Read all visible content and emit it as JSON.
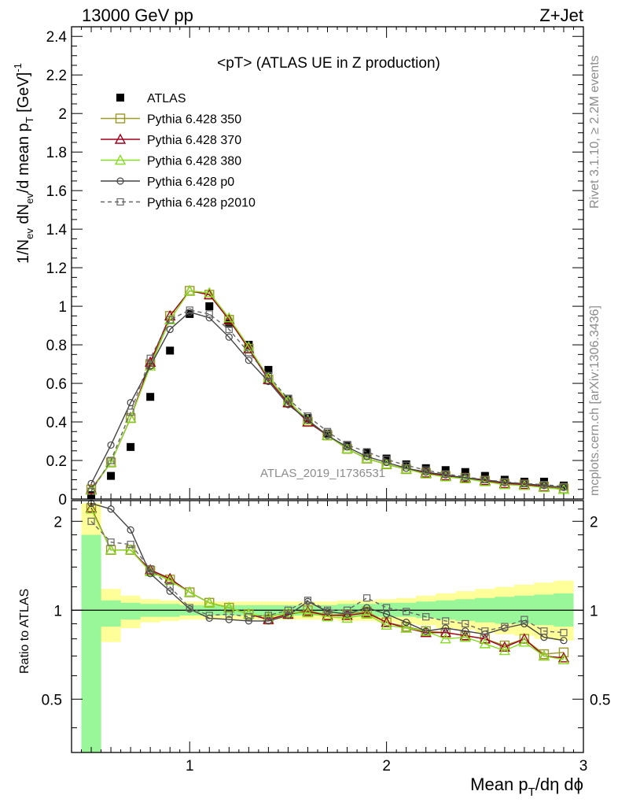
{
  "header": {
    "left": "13000 GeV pp",
    "right": "Z+Jet",
    "plot_title": "<pT> (ATLAS UE in Z production)",
    "side_rivet": "Rivet 3.1.10, ≥ 2.2M events",
    "side_mcplots": "mcplots.cern.ch [arXiv:1306.3436]",
    "analysis_id": "ATLAS_2019_I1736531"
  },
  "colors": {
    "atlas": "#000000",
    "p350": "#9a9a24",
    "p370": "#a0001c",
    "p380": "#88dd22",
    "p0": "#444444",
    "p2010": "#666666",
    "band_inner": "#99f799",
    "band_outer": "#ffff99"
  },
  "chart_data": [
    {
      "type": "line",
      "panel": "main",
      "ylabel": "1/N_ev dN_ev/d mean p_T [GeV]^-1",
      "ylim": [
        0,
        2.45
      ],
      "xlim": [
        0.4,
        3.0
      ],
      "yticks": [
        "0",
        "0.2",
        "0.4",
        "0.6",
        "0.8",
        "1",
        "1.2",
        "1.4",
        "1.6",
        "1.8",
        "2",
        "2.2",
        "2.4"
      ],
      "legend_position": "top-left",
      "x": [
        0.5,
        0.6,
        0.7,
        0.8,
        0.9,
        1.0,
        1.1,
        1.2,
        1.3,
        1.4,
        1.5,
        1.6,
        1.7,
        1.8,
        1.9,
        2.0,
        2.1,
        2.2,
        2.3,
        2.4,
        2.5,
        2.6,
        2.7,
        2.8,
        2.9
      ],
      "series": [
        {
          "name": "ATLAS",
          "key": "atlas",
          "marker": "square-filled",
          "values": [
            0.02,
            0.12,
            0.27,
            0.53,
            0.77,
            0.96,
            1.0,
            0.91,
            0.8,
            0.67,
            0.52,
            0.42,
            0.34,
            0.28,
            0.24,
            0.21,
            0.18,
            0.16,
            0.15,
            0.14,
            0.12,
            0.1,
            0.09,
            0.09,
            0.07
          ]
        },
        {
          "name": "Pythia 6.428 350",
          "key": "p350",
          "marker": "square-open",
          "values": [
            0.05,
            0.19,
            0.42,
            0.7,
            0.95,
            1.08,
            1.06,
            0.93,
            0.78,
            0.62,
            0.5,
            0.4,
            0.33,
            0.26,
            0.21,
            0.18,
            0.155,
            0.135,
            0.12,
            0.11,
            0.095,
            0.08,
            0.075,
            0.065,
            0.055
          ]
        },
        {
          "name": "Pythia 6.428 370",
          "key": "p370",
          "marker": "triangle-open",
          "values": [
            0.05,
            0.19,
            0.42,
            0.71,
            0.95,
            1.08,
            1.06,
            0.93,
            0.78,
            0.62,
            0.5,
            0.4,
            0.33,
            0.26,
            0.21,
            0.18,
            0.155,
            0.135,
            0.12,
            0.11,
            0.095,
            0.08,
            0.075,
            0.063,
            0.05
          ]
        },
        {
          "name": "Pythia 6.428 380",
          "key": "p380",
          "marker": "triangle-open",
          "values": [
            0.045,
            0.19,
            0.42,
            0.69,
            0.93,
            1.08,
            1.07,
            0.94,
            0.79,
            0.63,
            0.51,
            0.41,
            0.33,
            0.26,
            0.21,
            0.18,
            0.155,
            0.13,
            0.115,
            0.105,
            0.09,
            0.075,
            0.07,
            0.06,
            0.05
          ]
        },
        {
          "name": "Pythia 6.428 p0",
          "key": "p0",
          "marker": "circle-open",
          "values": [
            0.08,
            0.28,
            0.5,
            0.69,
            0.88,
            0.97,
            0.94,
            0.84,
            0.72,
            0.61,
            0.49,
            0.41,
            0.33,
            0.27,
            0.22,
            0.19,
            0.16,
            0.14,
            0.125,
            0.11,
            0.1,
            0.085,
            0.08,
            0.07,
            0.06
          ]
        },
        {
          "name": "Pythia 6.428 p2010",
          "key": "p2010",
          "marker": "square-open-small",
          "dashed": true,
          "values": [
            0.04,
            0.2,
            0.45,
            0.73,
            0.93,
            0.98,
            0.96,
            0.88,
            0.76,
            0.64,
            0.52,
            0.43,
            0.35,
            0.28,
            0.245,
            0.205,
            0.175,
            0.15,
            0.13,
            0.115,
            0.1,
            0.09,
            0.08,
            0.075,
            0.065
          ]
        }
      ]
    },
    {
      "type": "line",
      "panel": "ratio",
      "ylabel": "Ratio to ATLAS",
      "ylim": [
        0.33,
        2.35
      ],
      "xlim": [
        0.4,
        3.0
      ],
      "xlabel": "Mean p_T/dη dϕ",
      "xticks": [
        "1",
        "2",
        "3"
      ],
      "yticks": [
        "0.5",
        "1",
        "2"
      ],
      "reference_line": 1,
      "x": [
        0.5,
        0.6,
        0.7,
        0.8,
        0.9,
        1.0,
        1.1,
        1.2,
        1.3,
        1.4,
        1.5,
        1.6,
        1.7,
        1.8,
        1.9,
        2.0,
        2.1,
        2.2,
        2.3,
        2.4,
        2.5,
        2.6,
        2.7,
        2.8,
        2.9
      ],
      "band_inner": {
        "upper": [
          1.8,
          1.08,
          1.06,
          1.05,
          1.05,
          1.04,
          1.04,
          1.04,
          1.04,
          1.04,
          1.04,
          1.04,
          1.04,
          1.05,
          1.05,
          1.06,
          1.06,
          1.07,
          1.08,
          1.09,
          1.1,
          1.11,
          1.12,
          1.13,
          1.14
        ],
        "lower": [
          0.3,
          0.88,
          0.93,
          0.95,
          0.95,
          0.96,
          0.96,
          0.96,
          0.96,
          0.96,
          0.96,
          0.96,
          0.96,
          0.95,
          0.95,
          0.95,
          0.95,
          0.94,
          0.93,
          0.92,
          0.91,
          0.9,
          0.9,
          0.89,
          0.88
        ]
      },
      "band_outer": {
        "upper": [
          2.3,
          1.18,
          1.12,
          1.09,
          1.08,
          1.07,
          1.07,
          1.07,
          1.07,
          1.07,
          1.07,
          1.07,
          1.07,
          1.08,
          1.08,
          1.09,
          1.1,
          1.12,
          1.14,
          1.16,
          1.18,
          1.2,
          1.22,
          1.24,
          1.26
        ],
        "lower": [
          0.3,
          0.78,
          0.87,
          0.91,
          0.92,
          0.93,
          0.93,
          0.93,
          0.93,
          0.93,
          0.93,
          0.93,
          0.93,
          0.92,
          0.92,
          0.91,
          0.9,
          0.89,
          0.87,
          0.86,
          0.84,
          0.83,
          0.82,
          0.8,
          0.79
        ]
      },
      "series": [
        {
          "name": "Pythia 6.428 350",
          "key": "p350",
          "marker": "square-open",
          "values": [
            2.22,
            1.6,
            1.6,
            1.36,
            1.27,
            1.15,
            1.06,
            1.02,
            0.97,
            0.93,
            0.97,
            1.0,
            0.96,
            0.97,
            0.99,
            0.91,
            0.88,
            0.85,
            0.84,
            0.82,
            0.8,
            0.76,
            0.8,
            0.71,
            0.72
          ]
        },
        {
          "name": "Pythia 6.428 370",
          "key": "p370",
          "marker": "triangle-open",
          "values": [
            2.22,
            1.6,
            1.6,
            1.37,
            1.28,
            1.15,
            1.06,
            1.02,
            0.97,
            0.93,
            0.97,
            0.99,
            0.96,
            0.96,
            0.98,
            0.91,
            0.87,
            0.84,
            0.84,
            0.82,
            0.8,
            0.75,
            0.8,
            0.7,
            0.69
          ]
        },
        {
          "name": "Pythia 6.428 380",
          "key": "p380",
          "marker": "triangle-open",
          "values": [
            2.2,
            1.6,
            1.6,
            1.35,
            1.26,
            1.15,
            1.06,
            1.02,
            0.97,
            0.95,
            0.98,
            0.98,
            0.95,
            0.94,
            0.97,
            0.89,
            0.87,
            0.85,
            0.8,
            0.81,
            0.77,
            0.73,
            0.78,
            0.7,
            0.68
          ]
        },
        {
          "name": "Pythia 6.428 p0",
          "key": "p0",
          "marker": "circle-open",
          "values": [
            2.3,
            2.2,
            1.87,
            1.33,
            1.16,
            1.01,
            0.94,
            0.93,
            0.92,
            0.92,
            0.96,
            1.07,
            0.99,
            0.97,
            1.02,
            0.97,
            0.91,
            0.85,
            0.87,
            0.85,
            0.83,
            0.87,
            0.9,
            0.81,
            0.79
          ]
        },
        {
          "name": "Pythia 6.428 p2010",
          "key": "p2010",
          "marker": "square-open-small",
          "dashed": true,
          "values": [
            2.0,
            1.7,
            1.67,
            1.38,
            1.2,
            1.02,
            0.96,
            0.97,
            0.95,
            0.96,
            1.0,
            1.08,
            1.0,
            1.0,
            1.1,
            1.02,
            0.99,
            0.95,
            0.92,
            0.9,
            0.85,
            0.88,
            0.93,
            0.85,
            0.84
          ]
        }
      ]
    }
  ]
}
